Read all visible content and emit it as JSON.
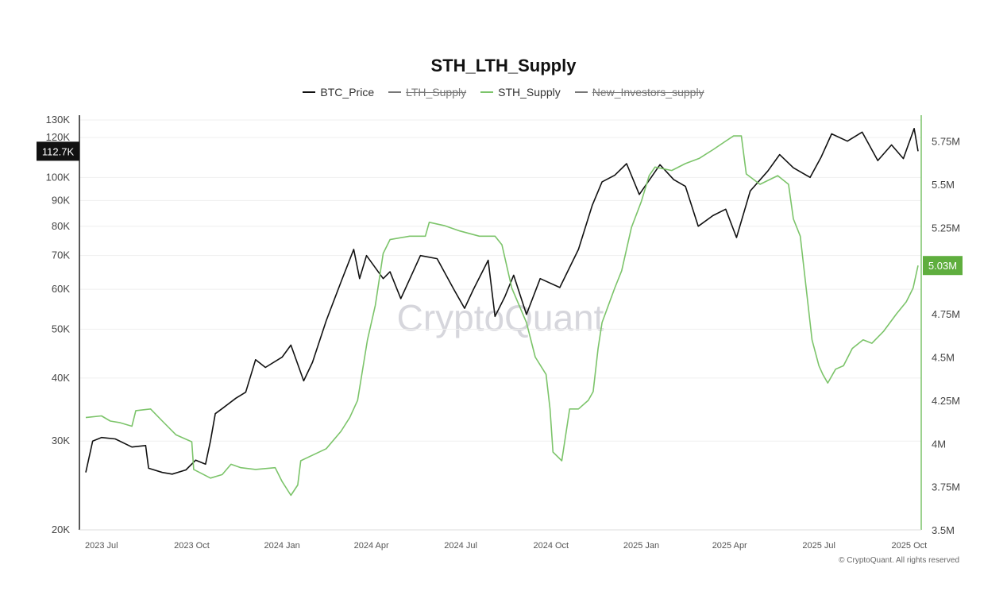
{
  "chart_data": {
    "type": "line",
    "title": "STH_LTH_Supply",
    "legend": [
      {
        "name": "BTC_Price",
        "color": "#111111",
        "hidden": false
      },
      {
        "name": "LTH_Supply",
        "color": "#777777",
        "hidden": true
      },
      {
        "name": "STH_Supply",
        "color": "#7cc46a",
        "hidden": false
      },
      {
        "name": "New_Investors_supply",
        "color": "#777777",
        "hidden": true
      }
    ],
    "x_ticks": [
      "2023 Jul",
      "2023 Oct",
      "2024 Jan",
      "2024 Apr",
      "2024 Jul",
      "2024 Oct",
      "2025 Jan",
      "2025 Apr",
      "2025 Jul",
      "2025 Oct"
    ],
    "x_range": [
      "2023-06-15",
      "2025-10-10"
    ],
    "left_axis": {
      "scale": "log",
      "ylim": [
        20000,
        130000
      ],
      "ticks": [
        {
          "v": 130000,
          "label": "130K"
        },
        {
          "v": 120000,
          "label": "120K"
        },
        {
          "v": 100000,
          "label": "100K"
        },
        {
          "v": 90000,
          "label": "90K"
        },
        {
          "v": 80000,
          "label": "80K"
        },
        {
          "v": 70000,
          "label": "70K"
        },
        {
          "v": 60000,
          "label": "60K"
        },
        {
          "v": 50000,
          "label": "50K"
        },
        {
          "v": 40000,
          "label": "40K"
        },
        {
          "v": 30000,
          "label": "30K"
        },
        {
          "v": 20000,
          "label": "20K"
        }
      ]
    },
    "right_axis": {
      "scale": "linear",
      "ylim": [
        3500000,
        5900000
      ],
      "ticks": [
        {
          "v": 5750000,
          "label": "5.75M"
        },
        {
          "v": 5500000,
          "label": "5.5M"
        },
        {
          "v": 5250000,
          "label": "5.25M"
        },
        {
          "v": 4750000,
          "label": "4.75M"
        },
        {
          "v": 4500000,
          "label": "4.5M"
        },
        {
          "v": 4250000,
          "label": "4.25M"
        },
        {
          "v": 4000000,
          "label": "4M"
        },
        {
          "v": 3750000,
          "label": "3.75M"
        },
        {
          "v": 3500000,
          "label": "3.5M"
        }
      ]
    },
    "last_value_labels": {
      "btc_price": "112.7K",
      "sth_supply": "5.03M"
    },
    "series": [
      {
        "name": "BTC_Price",
        "axis": "left",
        "color": "#111111",
        "points": [
          [
            "2023-06-15",
            26000
          ],
          [
            "2023-06-22",
            30000
          ],
          [
            "2023-07-01",
            30500
          ],
          [
            "2023-07-15",
            30300
          ],
          [
            "2023-08-01",
            29200
          ],
          [
            "2023-08-15",
            29400
          ],
          [
            "2023-08-18",
            26500
          ],
          [
            "2023-09-01",
            26000
          ],
          [
            "2023-09-11",
            25800
          ],
          [
            "2023-09-25",
            26300
          ],
          [
            "2023-10-05",
            27500
          ],
          [
            "2023-10-15",
            27000
          ],
          [
            "2023-10-20",
            30000
          ],
          [
            "2023-10-25",
            34000
          ],
          [
            "2023-11-01",
            34800
          ],
          [
            "2023-11-15",
            36500
          ],
          [
            "2023-11-25",
            37500
          ],
          [
            "2023-12-05",
            43500
          ],
          [
            "2023-12-15",
            42000
          ],
          [
            "2024-01-01",
            44000
          ],
          [
            "2024-01-10",
            46500
          ],
          [
            "2024-01-23",
            39500
          ],
          [
            "2024-02-01",
            43000
          ],
          [
            "2024-02-15",
            52000
          ],
          [
            "2024-03-01",
            62000
          ],
          [
            "2024-03-14",
            72000
          ],
          [
            "2024-03-20",
            63000
          ],
          [
            "2024-03-27",
            70000
          ],
          [
            "2024-04-13",
            63000
          ],
          [
            "2024-04-20",
            65000
          ],
          [
            "2024-05-01",
            57500
          ],
          [
            "2024-05-21",
            70000
          ],
          [
            "2024-06-07",
            69000
          ],
          [
            "2024-06-24",
            60000
          ],
          [
            "2024-07-05",
            55000
          ],
          [
            "2024-07-14",
            60000
          ],
          [
            "2024-07-29",
            68500
          ],
          [
            "2024-08-05",
            53000
          ],
          [
            "2024-08-15",
            58000
          ],
          [
            "2024-08-24",
            64000
          ],
          [
            "2024-09-06",
            53500
          ],
          [
            "2024-09-20",
            63000
          ],
          [
            "2024-10-10",
            60500
          ],
          [
            "2024-10-29",
            72000
          ],
          [
            "2024-11-12",
            88000
          ],
          [
            "2024-11-22",
            98000
          ],
          [
            "2024-12-05",
            101000
          ],
          [
            "2024-12-17",
            106500
          ],
          [
            "2024-12-30",
            92500
          ],
          [
            "2025-01-20",
            106000
          ],
          [
            "2025-02-03",
            99000
          ],
          [
            "2025-02-15",
            96000
          ],
          [
            "2025-02-28",
            80000
          ],
          [
            "2025-03-15",
            84000
          ],
          [
            "2025-03-28",
            86500
          ],
          [
            "2025-04-08",
            76000
          ],
          [
            "2025-04-22",
            94000
          ],
          [
            "2025-05-10",
            103000
          ],
          [
            "2025-05-22",
            111000
          ],
          [
            "2025-06-05",
            104500
          ],
          [
            "2025-06-22",
            100000
          ],
          [
            "2025-07-03",
            109500
          ],
          [
            "2025-07-14",
            122000
          ],
          [
            "2025-07-30",
            118000
          ],
          [
            "2025-08-14",
            123000
          ],
          [
            "2025-08-30",
            108000
          ],
          [
            "2025-09-13",
            116000
          ],
          [
            "2025-09-25",
            109000
          ],
          [
            "2025-10-06",
            125000
          ],
          [
            "2025-10-10",
            112700
          ]
        ]
      },
      {
        "name": "STH_Supply",
        "axis": "right",
        "color": "#7cc46a",
        "points": [
          [
            "2023-06-15",
            4150000
          ],
          [
            "2023-07-01",
            4160000
          ],
          [
            "2023-07-10",
            4130000
          ],
          [
            "2023-07-20",
            4120000
          ],
          [
            "2023-08-01",
            4100000
          ],
          [
            "2023-08-05",
            4190000
          ],
          [
            "2023-08-20",
            4200000
          ],
          [
            "2023-09-01",
            4130000
          ],
          [
            "2023-09-15",
            4050000
          ],
          [
            "2023-10-01",
            4010000
          ],
          [
            "2023-10-03",
            3850000
          ],
          [
            "2023-10-20",
            3800000
          ],
          [
            "2023-11-01",
            3820000
          ],
          [
            "2023-11-10",
            3880000
          ],
          [
            "2023-11-20",
            3860000
          ],
          [
            "2023-12-05",
            3850000
          ],
          [
            "2023-12-25",
            3860000
          ],
          [
            "2024-01-01",
            3780000
          ],
          [
            "2024-01-10",
            3700000
          ],
          [
            "2024-01-17",
            3760000
          ],
          [
            "2024-01-20",
            3900000
          ],
          [
            "2024-02-15",
            3970000
          ],
          [
            "2024-03-01",
            4070000
          ],
          [
            "2024-03-10",
            4150000
          ],
          [
            "2024-03-18",
            4250000
          ],
          [
            "2024-03-28",
            4600000
          ],
          [
            "2024-04-05",
            4800000
          ],
          [
            "2024-04-13",
            5100000
          ],
          [
            "2024-04-20",
            5180000
          ],
          [
            "2024-05-10",
            5200000
          ],
          [
            "2024-05-26",
            5200000
          ],
          [
            "2024-05-30",
            5280000
          ],
          [
            "2024-06-15",
            5260000
          ],
          [
            "2024-06-30",
            5230000
          ],
          [
            "2024-07-20",
            5200000
          ],
          [
            "2024-08-05",
            5200000
          ],
          [
            "2024-08-12",
            5150000
          ],
          [
            "2024-08-22",
            4900000
          ],
          [
            "2024-09-06",
            4700000
          ],
          [
            "2024-09-15",
            4500000
          ],
          [
            "2024-09-26",
            4400000
          ],
          [
            "2024-09-30",
            4200000
          ],
          [
            "2024-10-03",
            3950000
          ],
          [
            "2024-10-12",
            3900000
          ],
          [
            "2024-10-20",
            4200000
          ],
          [
            "2024-10-29",
            4200000
          ],
          [
            "2024-11-08",
            4250000
          ],
          [
            "2024-11-13",
            4300000
          ],
          [
            "2024-11-18",
            4550000
          ],
          [
            "2024-11-22",
            4700000
          ],
          [
            "2024-12-05",
            4900000
          ],
          [
            "2024-12-12",
            5000000
          ],
          [
            "2024-12-22",
            5250000
          ],
          [
            "2025-01-01",
            5400000
          ],
          [
            "2025-01-09",
            5550000
          ],
          [
            "2025-01-15",
            5600000
          ],
          [
            "2025-02-01",
            5580000
          ],
          [
            "2025-02-15",
            5620000
          ],
          [
            "2025-03-01",
            5650000
          ],
          [
            "2025-03-15",
            5700000
          ],
          [
            "2025-03-28",
            5750000
          ],
          [
            "2025-04-05",
            5780000
          ],
          [
            "2025-04-13",
            5780000
          ],
          [
            "2025-04-18",
            5560000
          ],
          [
            "2025-05-02",
            5500000
          ],
          [
            "2025-05-20",
            5550000
          ],
          [
            "2025-05-31",
            5500000
          ],
          [
            "2025-06-05",
            5300000
          ],
          [
            "2025-06-12",
            5200000
          ],
          [
            "2025-06-18",
            4900000
          ],
          [
            "2025-06-24",
            4600000
          ],
          [
            "2025-07-01",
            4450000
          ],
          [
            "2025-07-05",
            4400000
          ],
          [
            "2025-07-10",
            4350000
          ],
          [
            "2025-07-18",
            4430000
          ],
          [
            "2025-07-26",
            4450000
          ],
          [
            "2025-08-04",
            4550000
          ],
          [
            "2025-08-15",
            4600000
          ],
          [
            "2025-08-24",
            4580000
          ],
          [
            "2025-09-05",
            4650000
          ],
          [
            "2025-09-18",
            4750000
          ],
          [
            "2025-09-28",
            4820000
          ],
          [
            "2025-10-05",
            4900000
          ],
          [
            "2025-10-10",
            5030000
          ]
        ]
      }
    ],
    "watermark": "CryptoQuant",
    "copyright": "© CryptoQuant. All rights reserved"
  }
}
